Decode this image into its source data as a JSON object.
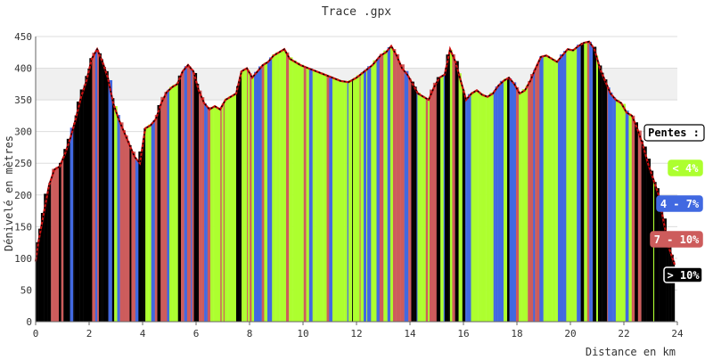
{
  "chart_data": {
    "type": "area",
    "title": "Trace .gpx",
    "xlabel": "Distance en km",
    "ylabel": "Dénivelé en mètres",
    "xlim": [
      0,
      24
    ],
    "ylim": [
      0,
      450
    ],
    "x_ticks": [
      "0",
      "2",
      "4",
      "6",
      "8",
      "10",
      "12",
      "14",
      "16",
      "18",
      "20",
      "22",
      "24"
    ],
    "y_ticks": [
      "0",
      "50",
      "100",
      "150",
      "200",
      "250",
      "300",
      "350",
      "400",
      "450"
    ],
    "grid": "horizontal",
    "highlight_band": [
      350,
      400
    ],
    "profile": {
      "x": [
        0,
        0.1,
        0.3,
        0.5,
        0.7,
        0.9,
        1.1,
        1.3,
        1.5,
        1.7,
        1.9,
        2.1,
        2.3,
        2.5,
        2.7,
        2.9,
        3.1,
        3.3,
        3.5,
        3.7,
        3.9,
        4.1,
        4.3,
        4.5,
        4.7,
        4.9,
        5.1,
        5.3,
        5.5,
        5.7,
        5.9,
        6.1,
        6.3,
        6.5,
        6.7,
        6.9,
        7.1,
        7.3,
        7.5,
        7.7,
        7.9,
        8.1,
        8.3,
        8.5,
        8.7,
        8.9,
        9.1,
        9.3,
        9.5,
        9.7,
        9.9,
        10.2,
        10.5,
        10.8,
        11.1,
        11.4,
        11.7,
        12.0,
        12.3,
        12.6,
        12.9,
        13.1,
        13.3,
        13.5,
        13.7,
        13.9,
        14.1,
        14.3,
        14.5,
        14.7,
        14.9,
        15.1,
        15.3,
        15.5,
        15.7,
        15.9,
        16.1,
        16.3,
        16.5,
        16.7,
        16.9,
        17.1,
        17.3,
        17.5,
        17.7,
        17.9,
        18.1,
        18.3,
        18.5,
        18.7,
        18.9,
        19.1,
        19.3,
        19.5,
        19.7,
        19.9,
        20.1,
        20.3,
        20.5,
        20.7,
        20.9,
        21.1,
        21.3,
        21.5,
        21.7,
        21.9,
        22.1,
        22.3,
        22.5,
        22.7,
        22.9,
        23.1,
        23.3,
        23.5,
        23.7,
        23.9
      ],
      "elevation": [
        95,
        125,
        170,
        215,
        240,
        245,
        265,
        290,
        320,
        355,
        380,
        415,
        430,
        410,
        385,
        345,
        320,
        300,
        280,
        260,
        250,
        305,
        310,
        320,
        345,
        362,
        370,
        375,
        395,
        405,
        395,
        365,
        345,
        335,
        340,
        335,
        350,
        355,
        360,
        395,
        400,
        385,
        395,
        405,
        410,
        420,
        425,
        430,
        415,
        410,
        405,
        400,
        395,
        390,
        385,
        380,
        378,
        385,
        395,
        405,
        420,
        425,
        435,
        420,
        400,
        390,
        375,
        360,
        355,
        350,
        370,
        385,
        390,
        430,
        410,
        380,
        350,
        360,
        365,
        358,
        355,
        360,
        372,
        380,
        385,
        375,
        360,
        365,
        380,
        400,
        418,
        420,
        415,
        410,
        420,
        430,
        428,
        435,
        440,
        442,
        430,
        400,
        380,
        360,
        350,
        345,
        330,
        325,
        305,
        280,
        250,
        225,
        200,
        155,
        115,
        90
      ]
    },
    "slope_classes": [
      {
        "name": "< 4%",
        "color": "#adff2f"
      },
      {
        "name": "4 - 7%",
        "color": "#4169e1"
      },
      {
        "name": "7 - 10%",
        "color": "#cd5c5c"
      },
      {
        "name": "> 10%",
        "color": "#000000"
      }
    ],
    "legend_title": "Pentes :",
    "legend_position": "right"
  }
}
